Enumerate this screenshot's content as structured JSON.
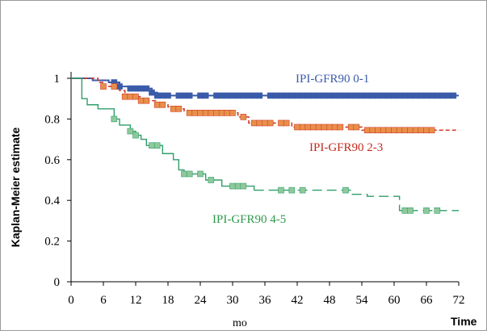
{
  "chart_data": {
    "type": "line",
    "subtype": "kaplan-meier step",
    "ylabel": "Kaplan-Meier estimate",
    "xlabel": "mo",
    "x_axis_end_label": "Time",
    "xlim": [
      0,
      72
    ],
    "ylim": [
      0,
      1
    ],
    "x_ticks": [
      "0",
      "6",
      "12",
      "18",
      "24",
      "30",
      "36",
      "42",
      "48",
      "54",
      "60",
      "66",
      "72"
    ],
    "y_ticks": [
      "0",
      "0.2",
      "0.4",
      "0.6",
      "0.8",
      "1"
    ],
    "grid": false,
    "series": [
      {
        "name": "IPI-GFR90 0-1",
        "color": "#3A5BA9",
        "line_style": "solid",
        "steps": [
          [
            0,
            1
          ],
          [
            4,
            0.99
          ],
          [
            7,
            0.98
          ],
          [
            9,
            0.96
          ],
          [
            11,
            0.95
          ],
          [
            15,
            0.93
          ],
          [
            16,
            0.915
          ],
          [
            72,
            0.915
          ]
        ],
        "censor_x": [
          8,
          9,
          11,
          12,
          13,
          14,
          15,
          16,
          17,
          18,
          20,
          21,
          22,
          24,
          25,
          27,
          28,
          29,
          30,
          31,
          32,
          33,
          34,
          35,
          37,
          38,
          39,
          40,
          41,
          42,
          43,
          44,
          45,
          46,
          47,
          48,
          49,
          50,
          51,
          52,
          53,
          54,
          55,
          56,
          57,
          58,
          59,
          60,
          61,
          62,
          63,
          64,
          65,
          66,
          67,
          68,
          69,
          70,
          71
        ]
      },
      {
        "name": "IPI-GFR90 2-3",
        "color": "#D23A2A",
        "marker_color": "#E8904A",
        "line_style": "dashed",
        "steps": [
          [
            0,
            1
          ],
          [
            5,
            0.98
          ],
          [
            6,
            0.96
          ],
          [
            9,
            0.94
          ],
          [
            10,
            0.91
          ],
          [
            13,
            0.89
          ],
          [
            16,
            0.87
          ],
          [
            18,
            0.86
          ],
          [
            19,
            0.85
          ],
          [
            21,
            0.84
          ],
          [
            22,
            0.83
          ],
          [
            31,
            0.81
          ],
          [
            33,
            0.78
          ],
          [
            41,
            0.76
          ],
          [
            54,
            0.745
          ],
          [
            72,
            0.745
          ]
        ],
        "censor_x": [
          6,
          8,
          10,
          11,
          12,
          13,
          14,
          16,
          17,
          19,
          20,
          22,
          23,
          24,
          25,
          26,
          27,
          28,
          29,
          30,
          32,
          34,
          35,
          36,
          37,
          39,
          40,
          42,
          43,
          44,
          45,
          46,
          47,
          48,
          49,
          50,
          52,
          53,
          55,
          56,
          57,
          58,
          59,
          60,
          61,
          62,
          63,
          64,
          65,
          66,
          67
        ]
      },
      {
        "name": "IPI-GFR90 4-5",
        "color": "#2F9E6B",
        "marker_color": "#8FC99B",
        "line_style": "solid-then-dashed",
        "steps": [
          [
            0,
            1
          ],
          [
            2,
            0.9
          ],
          [
            3,
            0.87
          ],
          [
            5,
            0.85
          ],
          [
            8,
            0.8
          ],
          [
            9,
            0.77
          ],
          [
            11,
            0.74
          ],
          [
            12,
            0.72
          ],
          [
            13,
            0.7
          ],
          [
            14,
            0.67
          ],
          [
            17,
            0.63
          ],
          [
            19,
            0.6
          ],
          [
            20,
            0.55
          ],
          [
            21,
            0.53
          ],
          [
            25,
            0.5
          ],
          [
            28,
            0.47
          ],
          [
            34,
            0.45
          ],
          [
            52,
            0.43
          ],
          [
            55,
            0.42
          ],
          [
            61,
            0.35
          ],
          [
            72,
            0.35
          ]
        ],
        "censor_x": [
          8,
          11,
          12,
          15,
          16,
          21,
          22,
          24,
          26,
          30,
          31,
          32,
          39,
          41,
          43,
          51,
          62,
          63,
          66,
          68
        ]
      }
    ],
    "annotations": [
      {
        "text": "IPI-GFR90 0-1",
        "color": "#3A5BA9"
      },
      {
        "text": "IPI-GFR90 2-3",
        "color": "#C22A1E"
      },
      {
        "text": "IPI-GFR90 4-5",
        "color": "#2E9A4A"
      }
    ]
  }
}
